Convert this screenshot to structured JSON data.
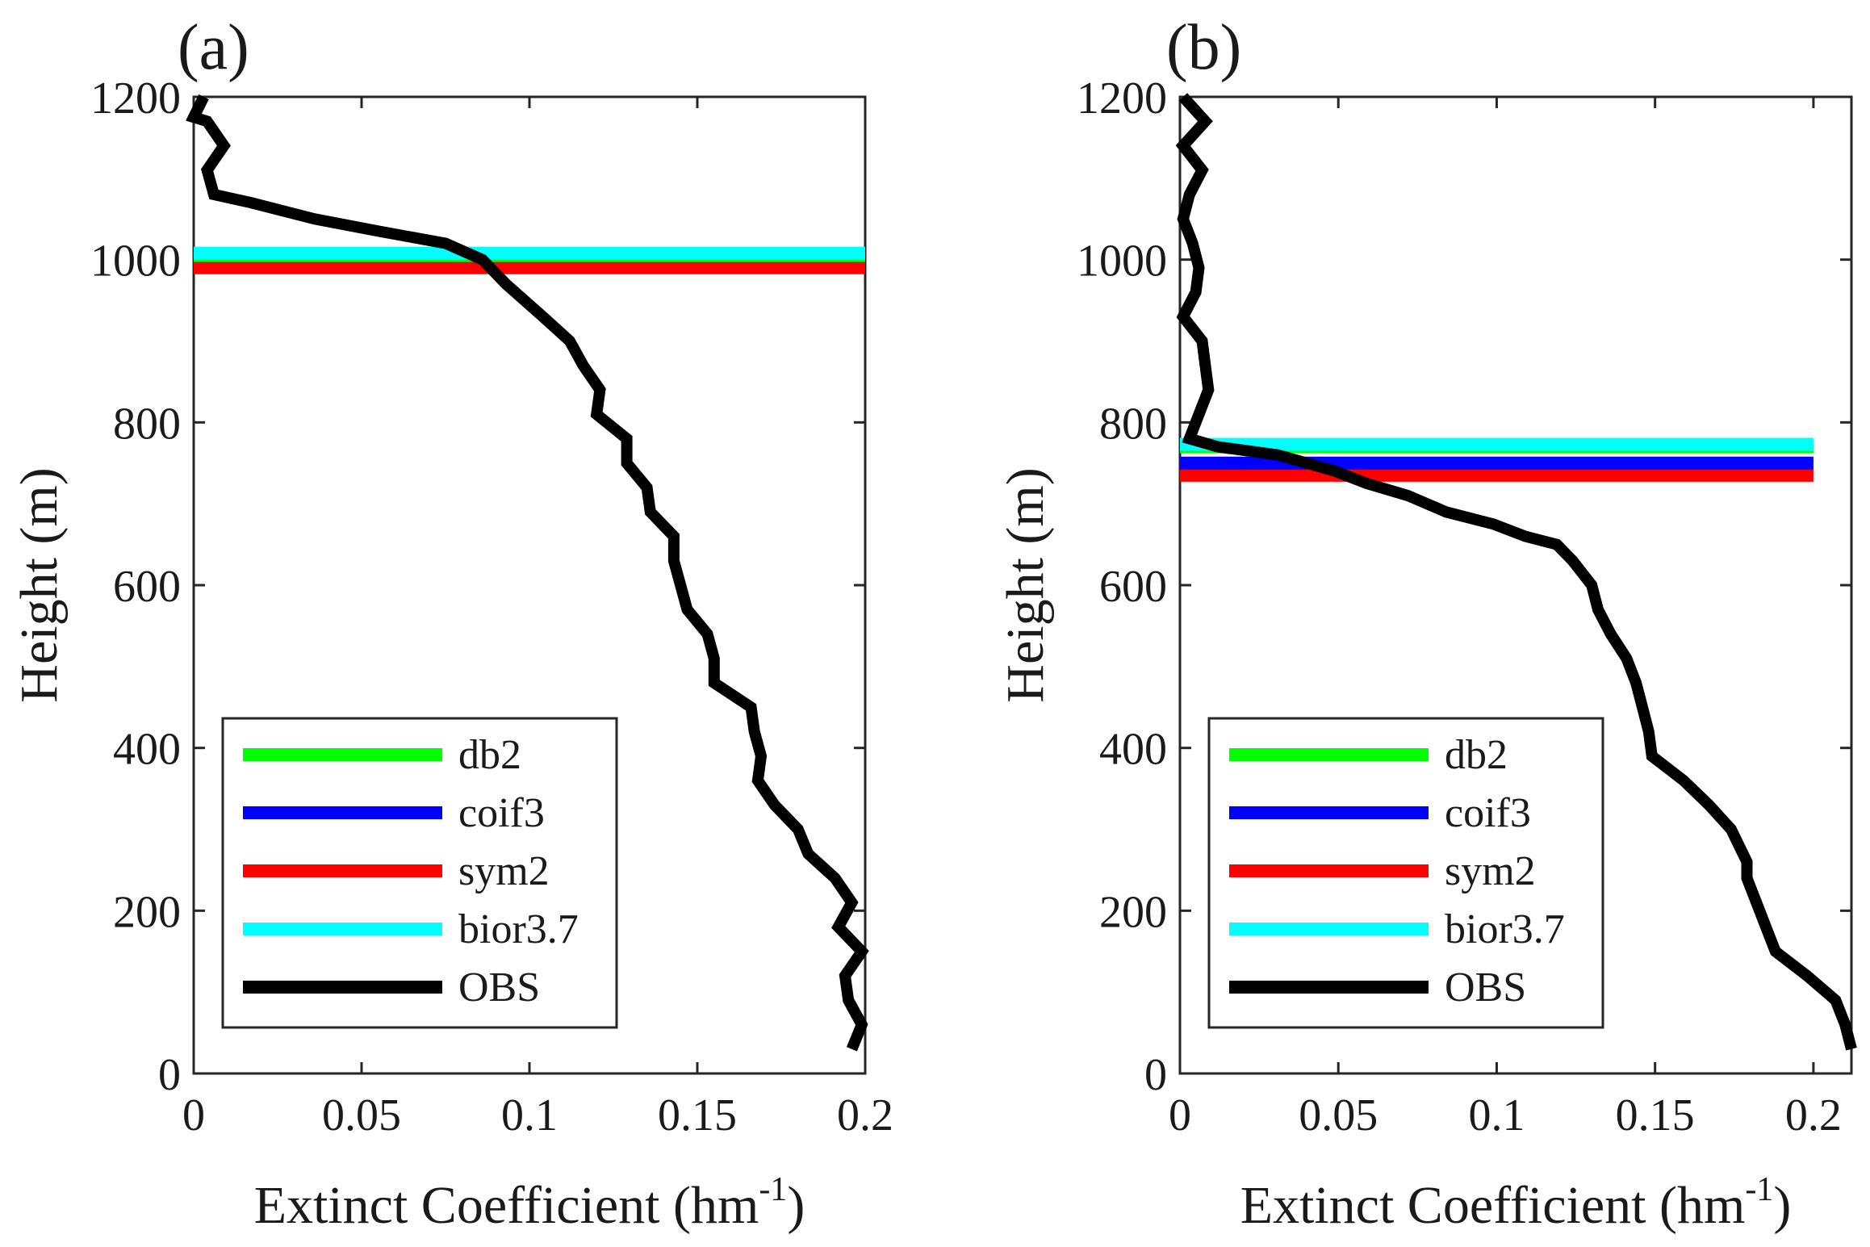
{
  "chart_data": [
    {
      "type": "line",
      "panel_label": "(a)",
      "xlabel": "Extinct Coefficient (hm",
      "xlabel_sup": "-1",
      "xlabel_close": ")",
      "ylabel": "Height (m)",
      "xlim": [
        0,
        0.2
      ],
      "ylim": [
        0,
        1200
      ],
      "x_ticks": [
        0,
        0.05,
        0.1,
        0.15,
        0.2
      ],
      "x_tick_labels": [
        "0",
        "0.05",
        "0.1",
        "0.15",
        "0.2"
      ],
      "y_ticks": [
        0,
        200,
        400,
        600,
        800,
        1000,
        1200
      ],
      "y_tick_labels": [
        "0",
        "200",
        "400",
        "600",
        "800",
        "1000",
        "1200"
      ],
      "legend_position": "bottom-left",
      "series": [
        {
          "name": "db2",
          "color": "#00ff00",
          "kind": "hline",
          "y": 1005
        },
        {
          "name": "coif3",
          "color": "#0000ff",
          "kind": "hline",
          "y": 1005
        },
        {
          "name": "sym2",
          "color": "#ff0000",
          "kind": "hline",
          "y": 990
        },
        {
          "name": "bior3.7",
          "color": "#00ffff",
          "kind": "hline",
          "y": 1008
        },
        {
          "name": "OBS",
          "color": "#000000",
          "kind": "profile",
          "points": [
            [
              0.196,
              30
            ],
            [
              0.199,
              60
            ],
            [
              0.195,
              90
            ],
            [
              0.194,
              120
            ],
            [
              0.199,
              150
            ],
            [
              0.192,
              180
            ],
            [
              0.196,
              210
            ],
            [
              0.191,
              240
            ],
            [
              0.183,
              270
            ],
            [
              0.18,
              300
            ],
            [
              0.173,
              330
            ],
            [
              0.168,
              360
            ],
            [
              0.169,
              390
            ],
            [
              0.167,
              420
            ],
            [
              0.166,
              450
            ],
            [
              0.155,
              480
            ],
            [
              0.155,
              510
            ],
            [
              0.153,
              540
            ],
            [
              0.147,
              570
            ],
            [
              0.145,
              600
            ],
            [
              0.143,
              630
            ],
            [
              0.143,
              660
            ],
            [
              0.136,
              690
            ],
            [
              0.135,
              720
            ],
            [
              0.129,
              750
            ],
            [
              0.129,
              780
            ],
            [
              0.12,
              810
            ],
            [
              0.121,
              840
            ],
            [
              0.116,
              870
            ],
            [
              0.112,
              900
            ],
            [
              0.104,
              930
            ],
            [
              0.093,
              970
            ],
            [
              0.086,
              1000
            ],
            [
              0.075,
              1020
            ],
            [
              0.055,
              1035
            ],
            [
              0.036,
              1050
            ],
            [
              0.017,
              1070
            ],
            [
              0.006,
              1080
            ],
            [
              0.004,
              1110
            ],
            [
              0.009,
              1140
            ],
            [
              0.004,
              1170
            ],
            [
              0.0,
              1175
            ],
            [
              0.003,
              1200
            ]
          ]
        }
      ]
    },
    {
      "type": "line",
      "panel_label": "(b)",
      "xlabel": "Extinct Coefficient (hm",
      "xlabel_sup": "-1",
      "xlabel_close": ")",
      "ylabel": "Height (m)",
      "xlim": [
        0,
        0.212
      ],
      "ylim": [
        0,
        1200
      ],
      "x_ticks": [
        0,
        0.05,
        0.1,
        0.15,
        0.2
      ],
      "x_tick_labels": [
        "0",
        "0.05",
        "0.1",
        "0.15",
        "0.2"
      ],
      "y_ticks": [
        0,
        200,
        400,
        600,
        800,
        1000,
        1200
      ],
      "y_tick_labels": [
        "0",
        "200",
        "400",
        "600",
        "800",
        "1000",
        "1200"
      ],
      "legend_position": "bottom-left",
      "series": [
        {
          "name": "db2",
          "color": "#00ff00",
          "kind": "hline",
          "y": 770,
          "x_end": 0.2
        },
        {
          "name": "coif3",
          "color": "#0000ff",
          "kind": "hline",
          "y": 750,
          "x_end": 0.2
        },
        {
          "name": "sym2",
          "color": "#ff0000",
          "kind": "hline",
          "y": 735,
          "x_end": 0.2
        },
        {
          "name": "bior3.7",
          "color": "#00ffff",
          "kind": "hline",
          "y": 773,
          "x_end": 0.2
        },
        {
          "name": "OBS",
          "color": "#000000",
          "kind": "profile",
          "points": [
            [
              0.212,
              30
            ],
            [
              0.21,
              60
            ],
            [
              0.207,
              90
            ],
            [
              0.198,
              120
            ],
            [
              0.188,
              150
            ],
            [
              0.185,
              180
            ],
            [
              0.182,
              210
            ],
            [
              0.179,
              240
            ],
            [
              0.179,
              260
            ],
            [
              0.174,
              300
            ],
            [
              0.167,
              330
            ],
            [
              0.159,
              360
            ],
            [
              0.149,
              390
            ],
            [
              0.148,
              420
            ],
            [
              0.146,
              450
            ],
            [
              0.144,
              480
            ],
            [
              0.141,
              510
            ],
            [
              0.136,
              540
            ],
            [
              0.132,
              570
            ],
            [
              0.13,
              600
            ],
            [
              0.124,
              630
            ],
            [
              0.119,
              650
            ],
            [
              0.109,
              660
            ],
            [
              0.099,
              675
            ],
            [
              0.084,
              690
            ],
            [
              0.072,
              710
            ],
            [
              0.059,
              725
            ],
            [
              0.049,
              740
            ],
            [
              0.031,
              760
            ],
            [
              0.012,
              770
            ],
            [
              0.003,
              780
            ],
            [
              0.006,
              810
            ],
            [
              0.009,
              840
            ],
            [
              0.008,
              870
            ],
            [
              0.007,
              900
            ],
            [
              0.001,
              930
            ],
            [
              0.005,
              960
            ],
            [
              0.006,
              990
            ],
            [
              0.004,
              1020
            ],
            [
              0.001,
              1050
            ],
            [
              0.003,
              1080
            ],
            [
              0.007,
              1110
            ],
            [
              0.001,
              1140
            ],
            [
              0.008,
              1170
            ],
            [
              0.001,
              1200
            ]
          ]
        }
      ]
    }
  ]
}
